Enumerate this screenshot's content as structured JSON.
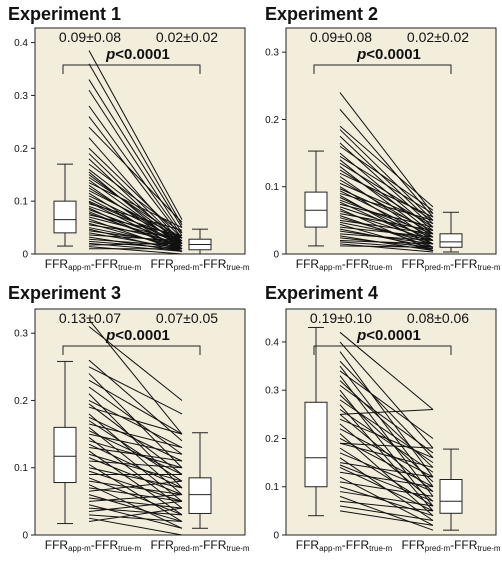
{
  "chart_data": [
    {
      "type": "box+paired-line",
      "title": "Experiment 1",
      "ylim": [
        0,
        0.42
      ],
      "yticks": [
        "0",
        "0.1",
        "0.2",
        "0.3",
        "0.4"
      ],
      "ytick_values": [
        0,
        0.1,
        0.2,
        0.3,
        0.4
      ],
      "stats": [
        "0.09±0.08",
        "0.02±0.02"
      ],
      "pvalue": {
        "p": "p",
        "rest": "<0.0001"
      },
      "categories": [
        {
          "main": "FFR",
          "sub1": "app-m",
          "mid": "-FFR",
          "sub2": "true-m"
        },
        {
          "main": "FFR",
          "sub1": "pred-m",
          "mid": "-FFR",
          "sub2": "true-m"
        }
      ],
      "box_left": {
        "min": 0.015,
        "q1": 0.04,
        "median": 0.065,
        "q3": 0.1,
        "max": 0.17
      },
      "box_right": {
        "min": 0.0,
        "q1": 0.008,
        "median": 0.018,
        "q3": 0.028,
        "max": 0.047
      },
      "pairs": [
        [
          0.385,
          0.065
        ],
        [
          0.36,
          0.055
        ],
        [
          0.33,
          0.05
        ],
        [
          0.31,
          0.04
        ],
        [
          0.28,
          0.035
        ],
        [
          0.26,
          0.03
        ],
        [
          0.24,
          0.06
        ],
        [
          0.22,
          0.02
        ],
        [
          0.2,
          0.03
        ],
        [
          0.19,
          0.02
        ],
        [
          0.18,
          0.015
        ],
        [
          0.17,
          0.04
        ],
        [
          0.16,
          0.025
        ],
        [
          0.155,
          0.01
        ],
        [
          0.15,
          0.02
        ],
        [
          0.145,
          0.03
        ],
        [
          0.14,
          0.015
        ],
        [
          0.135,
          0.05
        ],
        [
          0.13,
          0.01
        ],
        [
          0.125,
          0.02
        ],
        [
          0.12,
          0.03
        ],
        [
          0.115,
          0.005
        ],
        [
          0.11,
          0.025
        ],
        [
          0.105,
          0.015
        ],
        [
          0.1,
          0.02
        ],
        [
          0.098,
          0.01
        ],
        [
          0.095,
          0.045
        ],
        [
          0.09,
          0.03
        ],
        [
          0.087,
          0.005
        ],
        [
          0.084,
          0.02
        ],
        [
          0.08,
          0.01
        ],
        [
          0.077,
          0.015
        ],
        [
          0.074,
          0.035
        ],
        [
          0.07,
          0.025
        ],
        [
          0.066,
          0.005
        ],
        [
          0.062,
          0.02
        ],
        [
          0.058,
          0.01
        ],
        [
          0.055,
          0.03
        ],
        [
          0.05,
          0.015
        ],
        [
          0.047,
          0.005
        ],
        [
          0.044,
          0.02
        ],
        [
          0.04,
          0.01
        ],
        [
          0.036,
          0.025
        ],
        [
          0.032,
          0.005
        ],
        [
          0.028,
          0.015
        ],
        [
          0.024,
          0.01
        ],
        [
          0.02,
          0.005
        ],
        [
          0.017,
          0.02
        ],
        [
          0.014,
          0.0
        ],
        [
          0.01,
          0.01
        ]
      ]
    },
    {
      "type": "box+paired-line",
      "title": "Experiment 2",
      "ylim": [
        0,
        0.33
      ],
      "yticks": [
        "0",
        "0.1",
        "0.2",
        "0.3"
      ],
      "ytick_values": [
        0,
        0.1,
        0.2,
        0.3
      ],
      "stats": [
        "0.09±0.08",
        "0.02±0.02"
      ],
      "pvalue": {
        "p": "p",
        "rest": "<0.0001"
      },
      "categories": [
        {
          "main": "FFR",
          "sub1": "app-m",
          "mid": "-FFR",
          "sub2": "true-m"
        },
        {
          "main": "FFR",
          "sub1": "pred-m",
          "mid": "-FFR",
          "sub2": "true-m"
        }
      ],
      "box_left": {
        "min": 0.012,
        "q1": 0.04,
        "median": 0.065,
        "q3": 0.092,
        "max": 0.153
      },
      "box_right": {
        "min": 0.003,
        "q1": 0.01,
        "median": 0.018,
        "q3": 0.03,
        "max": 0.062
      },
      "pairs": [
        [
          0.24,
          0.06
        ],
        [
          0.215,
          0.055
        ],
        [
          0.19,
          0.07
        ],
        [
          0.185,
          0.05
        ],
        [
          0.175,
          0.045
        ],
        [
          0.165,
          0.04
        ],
        [
          0.16,
          0.065
        ],
        [
          0.15,
          0.035
        ],
        [
          0.145,
          0.06
        ],
        [
          0.14,
          0.03
        ],
        [
          0.135,
          0.05
        ],
        [
          0.13,
          0.025
        ],
        [
          0.125,
          0.04
        ],
        [
          0.12,
          0.055
        ],
        [
          0.115,
          0.02
        ],
        [
          0.11,
          0.03
        ],
        [
          0.105,
          0.045
        ],
        [
          0.1,
          0.015
        ],
        [
          0.097,
          0.035
        ],
        [
          0.094,
          0.025
        ],
        [
          0.09,
          0.05
        ],
        [
          0.087,
          0.01
        ],
        [
          0.084,
          0.02
        ],
        [
          0.08,
          0.03
        ],
        [
          0.077,
          0.015
        ],
        [
          0.074,
          0.04
        ],
        [
          0.07,
          0.025
        ],
        [
          0.067,
          0.005
        ],
        [
          0.064,
          0.02
        ],
        [
          0.06,
          0.035
        ],
        [
          0.057,
          0.01
        ],
        [
          0.054,
          0.015
        ],
        [
          0.05,
          0.03
        ],
        [
          0.047,
          0.02
        ],
        [
          0.044,
          0.005
        ],
        [
          0.04,
          0.025
        ],
        [
          0.037,
          0.01
        ],
        [
          0.034,
          0.015
        ],
        [
          0.03,
          0.02
        ],
        [
          0.027,
          0.005
        ],
        [
          0.024,
          0.01
        ],
        [
          0.02,
          0.015
        ],
        [
          0.018,
          0.008
        ],
        [
          0.015,
          0.003
        ],
        [
          0.012,
          0.01
        ]
      ]
    },
    {
      "type": "box+paired-line",
      "title": "Experiment 3",
      "ylim": [
        0,
        0.33
      ],
      "yticks": [
        "0",
        "0.1",
        "0.2",
        "0.3"
      ],
      "ytick_values": [
        0,
        0.1,
        0.2,
        0.3
      ],
      "stats": [
        "0.13±0.07",
        "0.07±0.05"
      ],
      "pvalue": {
        "p": "p",
        "rest": "<0.0001"
      },
      "categories": [
        {
          "main": "FFR",
          "sub1": "app-m",
          "mid": "-FFR",
          "sub2": "true-m"
        },
        {
          "main": "FFR",
          "sub1": "pred-m",
          "mid": "-FFR",
          "sub2": "true-m"
        }
      ],
      "box_left": {
        "min": 0.017,
        "q1": 0.078,
        "median": 0.117,
        "q3": 0.16,
        "max": 0.258
      },
      "box_right": {
        "min": 0.01,
        "q1": 0.032,
        "median": 0.06,
        "q3": 0.085,
        "max": 0.152
      },
      "pairs": [
        [
          0.32,
          0.15
        ],
        [
          0.31,
          0.2
        ],
        [
          0.26,
          0.14
        ],
        [
          0.25,
          0.18
        ],
        [
          0.24,
          0.1
        ],
        [
          0.23,
          0.15
        ],
        [
          0.22,
          0.12
        ],
        [
          0.21,
          0.07
        ],
        [
          0.2,
          0.13
        ],
        [
          0.195,
          0.09
        ],
        [
          0.19,
          0.15
        ],
        [
          0.18,
          0.06
        ],
        [
          0.175,
          0.11
        ],
        [
          0.17,
          0.08
        ],
        [
          0.165,
          0.13
        ],
        [
          0.16,
          0.05
        ],
        [
          0.155,
          0.09
        ],
        [
          0.15,
          0.12
        ],
        [
          0.145,
          0.04
        ],
        [
          0.14,
          0.1
        ],
        [
          0.135,
          0.07
        ],
        [
          0.13,
          0.11
        ],
        [
          0.125,
          0.03
        ],
        [
          0.12,
          0.08
        ],
        [
          0.115,
          0.06
        ],
        [
          0.11,
          0.1
        ],
        [
          0.105,
          0.02
        ],
        [
          0.1,
          0.07
        ],
        [
          0.095,
          0.05
        ],
        [
          0.09,
          0.09
        ],
        [
          0.085,
          0.03
        ],
        [
          0.08,
          0.06
        ],
        [
          0.075,
          0.01
        ],
        [
          0.07,
          0.05
        ],
        [
          0.065,
          0.08
        ],
        [
          0.06,
          0.02
        ],
        [
          0.055,
          0.04
        ],
        [
          0.05,
          0.06
        ],
        [
          0.045,
          0.01
        ],
        [
          0.04,
          0.03
        ],
        [
          0.035,
          0.05
        ],
        [
          0.03,
          0.02
        ],
        [
          0.025,
          0.0
        ],
        [
          0.02,
          0.04
        ]
      ]
    },
    {
      "type": "box+paired-line",
      "title": "Experiment 4",
      "ylim": [
        0,
        0.46
      ],
      "yticks": [
        "0",
        "0.1",
        "0.2",
        "0.3",
        "0.4"
      ],
      "ytick_values": [
        0,
        0.1,
        0.2,
        0.3,
        0.4
      ],
      "stats": [
        "0.19±0.10",
        "0.08±0.06"
      ],
      "pvalue": {
        "p": "p",
        "rest": "<0.0001"
      },
      "categories": [
        {
          "main": "FFR",
          "sub1": "app-m",
          "mid": "-FFR",
          "sub2": "true-m"
        },
        {
          "main": "FFR",
          "sub1": "pred-m",
          "mid": "-FFR",
          "sub2": "true-m"
        }
      ],
      "box_left": {
        "min": 0.04,
        "q1": 0.1,
        "median": 0.16,
        "q3": 0.275,
        "max": 0.43
      },
      "box_right": {
        "min": 0.01,
        "q1": 0.045,
        "median": 0.07,
        "q3": 0.115,
        "max": 0.178
      },
      "pairs": [
        [
          0.42,
          0.26
        ],
        [
          0.4,
          0.18
        ],
        [
          0.38,
          0.12
        ],
        [
          0.36,
          0.16
        ],
        [
          0.35,
          0.1
        ],
        [
          0.34,
          0.2
        ],
        [
          0.33,
          0.08
        ],
        [
          0.32,
          0.14
        ],
        [
          0.31,
          0.17
        ],
        [
          0.3,
          0.06
        ],
        [
          0.29,
          0.11
        ],
        [
          0.28,
          0.15
        ],
        [
          0.27,
          0.05
        ],
        [
          0.26,
          0.13
        ],
        [
          0.25,
          0.09
        ],
        [
          0.24,
          0.16
        ],
        [
          0.23,
          0.07
        ],
        [
          0.22,
          0.12
        ],
        [
          0.21,
          0.04
        ],
        [
          0.2,
          0.1
        ],
        [
          0.19,
          0.14
        ],
        [
          0.18,
          0.06
        ],
        [
          0.17,
          0.09
        ],
        [
          0.16,
          0.03
        ],
        [
          0.15,
          0.12
        ],
        [
          0.145,
          0.07
        ],
        [
          0.14,
          0.05
        ],
        [
          0.13,
          0.1
        ],
        [
          0.12,
          0.02
        ],
        [
          0.11,
          0.08
        ],
        [
          0.1,
          0.04
        ],
        [
          0.09,
          0.06
        ],
        [
          0.08,
          0.01
        ],
        [
          0.07,
          0.05
        ],
        [
          0.06,
          0.03
        ],
        [
          0.05,
          0.02
        ],
        [
          0.25,
          0.26
        ],
        [
          0.19,
          0.18
        ]
      ]
    }
  ]
}
